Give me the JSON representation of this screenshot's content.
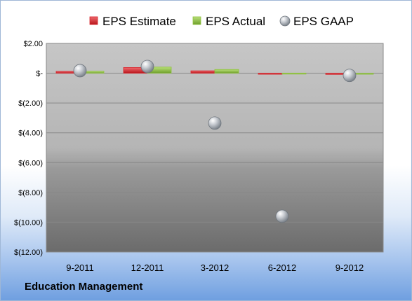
{
  "chart_data": {
    "type": "bar+scatter",
    "categories": [
      "9-2011",
      "12-2011",
      "3-2012",
      "6-2012",
      "9-2012"
    ],
    "series": [
      {
        "name": "EPS Estimate",
        "kind": "bar",
        "color": "#d8232a",
        "values": [
          0.12,
          0.38,
          0.16,
          -0.02,
          -0.08
        ]
      },
      {
        "name": "EPS Actual",
        "kind": "bar",
        "color": "#8ec13e",
        "values": [
          0.13,
          0.41,
          0.25,
          0.01,
          -0.02
        ]
      },
      {
        "name": "EPS GAAP",
        "kind": "scatter",
        "color": "#b8bec6",
        "values": [
          0.17,
          0.45,
          -3.35,
          -9.6,
          -0.15
        ]
      }
    ],
    "ylim": [
      -12,
      2
    ],
    "yticks": [
      2,
      0,
      -2,
      -4,
      -6,
      -8,
      -10,
      -12
    ],
    "ytick_labels": [
      "$2.00",
      "$-",
      "$(2.00)",
      "$(4.00)",
      "$(6.00)",
      "$(8.00)",
      "$(10.00)",
      "$(12.00)"
    ],
    "legend_position": "top",
    "grid": true
  },
  "footer": {
    "title": "Education Management"
  }
}
